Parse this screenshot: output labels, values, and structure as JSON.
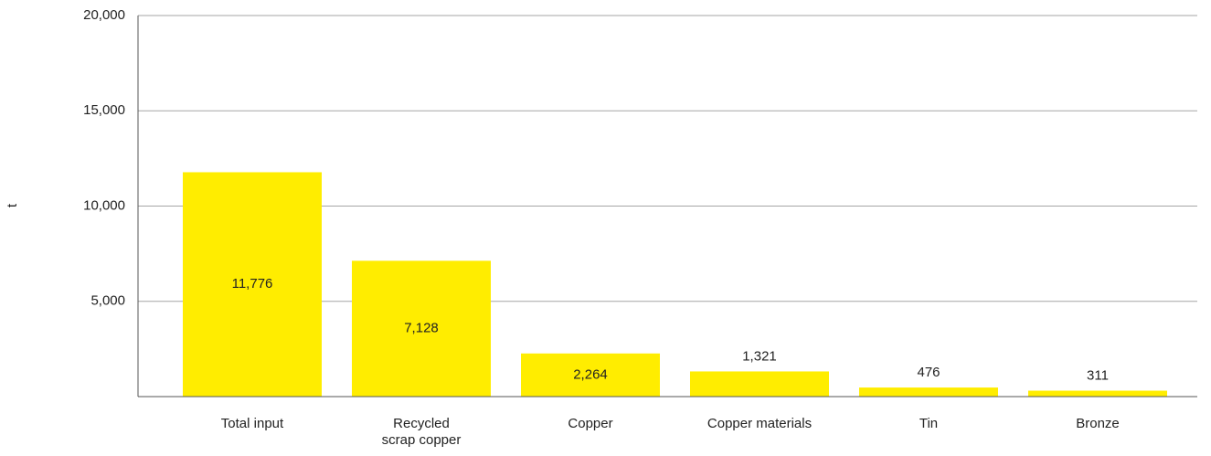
{
  "chart_data": {
    "type": "bar",
    "y_label": "t",
    "categories": [
      "Total input",
      "Recycled\nscrap copper",
      "Copper",
      "Copper materials",
      "Tin",
      "Bronze"
    ],
    "values": [
      11776,
      7128,
      2264,
      1321,
      476,
      311
    ],
    "value_labels": [
      "11,776",
      "7,128",
      "2,264",
      "1,321",
      "476",
      "311"
    ],
    "color": "#ffed00",
    "ylim": [
      0,
      20000
    ],
    "yticks": [
      {
        "value": 5000,
        "label": "5,000"
      },
      {
        "value": 10000,
        "label": "10,000"
      },
      {
        "value": 15000,
        "label": "15,000"
      },
      {
        "value": 20000,
        "label": "20,000"
      }
    ],
    "grid": true
  }
}
